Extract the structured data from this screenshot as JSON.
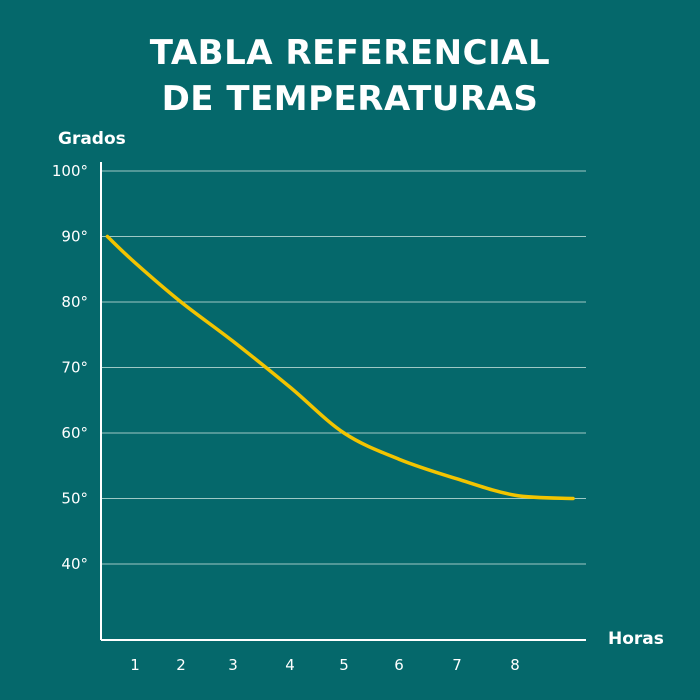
{
  "chart_data": {
    "type": "line",
    "title_line1": "TABLA REFERENCIAL",
    "title_line2": "DE TEMPERATURAS",
    "ylabel": "Grados",
    "xlabel": "Horas",
    "y_ticks": [
      {
        "value": 100,
        "label": "100°"
      },
      {
        "value": 90,
        "label": "90°"
      },
      {
        "value": 80,
        "label": "80°"
      },
      {
        "value": 70,
        "label": "70°"
      },
      {
        "value": 60,
        "label": "60°"
      },
      {
        "value": 50,
        "label": "50°"
      },
      {
        "value": 40,
        "label": "40°"
      }
    ],
    "x_ticks": [
      {
        "value": 1,
        "label": "1"
      },
      {
        "value": 2,
        "label": "2"
      },
      {
        "value": 3,
        "label": "3"
      },
      {
        "value": 4,
        "label": "4"
      },
      {
        "value": 5,
        "label": "5"
      },
      {
        "value": 6,
        "label": "6"
      },
      {
        "value": 7,
        "label": "7"
      },
      {
        "value": 8,
        "label": "8"
      }
    ],
    "series": [
      {
        "x": [
          0.4,
          1,
          2,
          3,
          4,
          5,
          6,
          7,
          8,
          9
        ],
        "values": [
          90,
          86,
          80,
          74,
          67,
          60,
          56,
          53,
          50.5,
          50
        ]
      }
    ],
    "ylim": [
      28,
      106
    ],
    "xlim": [
      0,
      9.7
    ],
    "grid": true,
    "colors": {
      "background": "#05686b",
      "line": "#f2c400",
      "grid": "#9ec9c5",
      "axis": "#ffffff",
      "text": "#ffffff"
    }
  }
}
